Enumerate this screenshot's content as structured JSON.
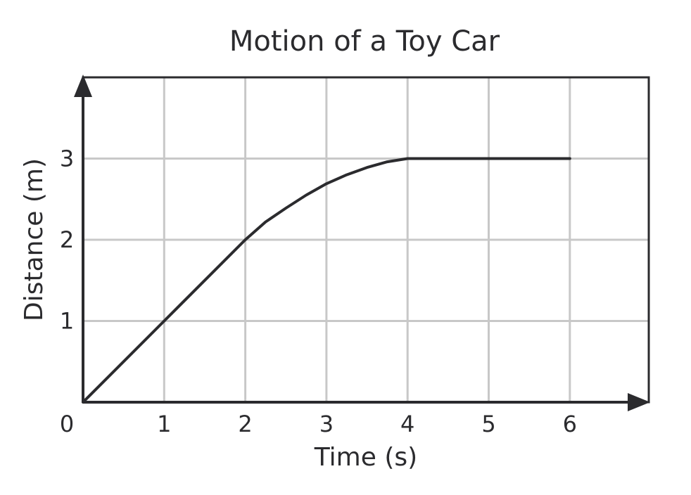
{
  "chart_data": {
    "type": "line",
    "title": "Motion of a Toy Car",
    "xlabel": "Time (s)",
    "ylabel": "Distance (m)",
    "xlim": [
      0,
      7
    ],
    "ylim": [
      0,
      4
    ],
    "origin_label": "0",
    "x_ticks": [
      1,
      2,
      3,
      4,
      5,
      6
    ],
    "x_tick_labels": [
      "1",
      "2",
      "3",
      "4",
      "5",
      "6"
    ],
    "y_ticks": [
      1,
      2,
      3
    ],
    "y_tick_labels": [
      "1",
      "2",
      "3"
    ],
    "grid": true,
    "series": [
      {
        "x": [
          0,
          1,
          2,
          2.25,
          2.5,
          2.75,
          3,
          3.25,
          3.5,
          3.75,
          4,
          5,
          6
        ],
        "y": [
          0,
          1,
          2,
          2.22,
          2.39,
          2.55,
          2.69,
          2.8,
          2.89,
          2.96,
          3,
          3,
          3
        ]
      }
    ],
    "colors": {
      "line": "#2b2b2e",
      "grid": "#c8c8c8",
      "axes": "#2b2b2e"
    }
  }
}
